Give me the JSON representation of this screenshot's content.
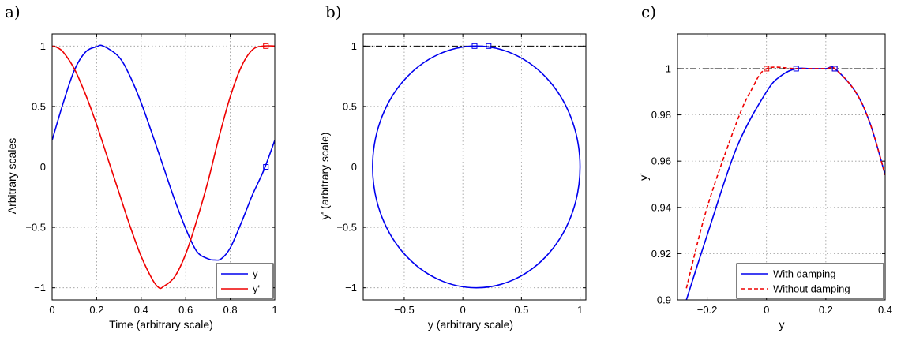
{
  "chart_data": [
    {
      "type": "line",
      "panel_label": "a)",
      "xlabel": "Time (arbitrary scale)",
      "ylabel": "Arbitrary scales",
      "xlim": [
        0,
        1
      ],
      "ylim": [
        -1.1,
        1.1
      ],
      "xticks": [
        0,
        0.2,
        0.4,
        0.6,
        0.8,
        1
      ],
      "xtick_labels": [
        "0",
        "0.2",
        "0.4",
        "0.6",
        "0.8",
        "1"
      ],
      "yticks": [
        -1,
        -0.5,
        0,
        0.5,
        1
      ],
      "ytick_labels": [
        "−1",
        "−0.5",
        "0",
        "0.5",
        "1"
      ],
      "grid": true,
      "legend_position": "bottom-right",
      "series": [
        {
          "name": "y",
          "color": "#0000ee",
          "x": [
            0,
            0.05,
            0.1,
            0.15,
            0.2,
            0.23,
            0.3,
            0.35,
            0.4,
            0.45,
            0.5,
            0.55,
            0.6,
            0.65,
            0.7,
            0.73,
            0.76,
            0.8,
            0.85,
            0.9,
            0.95,
            1.0
          ],
          "y": [
            0.22,
            0.53,
            0.8,
            0.95,
            0.995,
            1.0,
            0.91,
            0.75,
            0.53,
            0.27,
            0.0,
            -0.27,
            -0.51,
            -0.7,
            -0.76,
            -0.77,
            -0.76,
            -0.67,
            -0.46,
            -0.23,
            -0.03,
            0.22
          ]
        },
        {
          "name": "y'",
          "color": "#ee0000",
          "x": [
            0,
            0.02,
            0.05,
            0.1,
            0.15,
            0.2,
            0.25,
            0.3,
            0.35,
            0.4,
            0.45,
            0.48,
            0.5,
            0.55,
            0.6,
            0.65,
            0.7,
            0.75,
            0.8,
            0.85,
            0.9,
            0.95,
            1.0
          ],
          "y": [
            1.0,
            0.99,
            0.95,
            0.81,
            0.6,
            0.35,
            0.07,
            -0.21,
            -0.49,
            -0.74,
            -0.93,
            -1.0,
            -0.99,
            -0.91,
            -0.72,
            -0.44,
            -0.12,
            0.25,
            0.58,
            0.83,
            0.97,
            1.0,
            1.0
          ]
        }
      ],
      "markers": [
        {
          "x": 0.96,
          "y": 1.0,
          "color": "#ee0000"
        },
        {
          "x": 0.96,
          "y": 0.0,
          "color": "#0000ee"
        }
      ]
    },
    {
      "type": "line",
      "panel_label": "b)",
      "xlabel": "y (arbitrary scale)",
      "ylabel": "y' (arbitrary scale)",
      "xlim": [
        -0.85,
        1.05
      ],
      "ylim": [
        -1.1,
        1.1
      ],
      "xticks": [
        -0.5,
        0,
        0.5,
        1
      ],
      "xtick_labels": [
        "−0.5",
        "0",
        "0.5",
        "1"
      ],
      "yticks": [
        -1,
        -0.5,
        0,
        0.5,
        1
      ],
      "ytick_labels": [
        "−1",
        "−0.5",
        "0",
        "0.5",
        "1"
      ],
      "grid": true,
      "hline": {
        "y": 1,
        "style": "dash-dot",
        "color": "#000000"
      },
      "ellipse": {
        "cx": 0.115,
        "cy": 0.0,
        "rx": 0.885,
        "ry": 1.0,
        "color": "#0000ee"
      },
      "markers": [
        {
          "x": 0.1,
          "y": 1.0,
          "color": "#0000ee"
        },
        {
          "x": 0.22,
          "y": 1.0,
          "color": "#0000ee"
        }
      ]
    },
    {
      "type": "line",
      "panel_label": "c)",
      "xlabel": "y",
      "ylabel": "y'",
      "xlim": [
        -0.3,
        0.4
      ],
      "ylim": [
        0.9,
        1.015
      ],
      "xticks": [
        -0.2,
        0,
        0.2,
        0.4
      ],
      "xtick_labels": [
        "−0.2",
        "0",
        "0.2",
        "0.4"
      ],
      "yticks": [
        0.9,
        0.92,
        0.94,
        0.96,
        0.98,
        1
      ],
      "ytick_labels": [
        "0.9",
        "0.92",
        "0.94",
        "0.96",
        "0.98",
        "1"
      ],
      "grid": true,
      "hline": {
        "y": 1,
        "style": "dash-dot",
        "color": "#000000"
      },
      "legend_position": "bottom-right",
      "series": [
        {
          "name": "With damping",
          "color": "#0000ee",
          "style": "solid",
          "x": [
            -0.27,
            -0.2,
            -0.1,
            0.0,
            0.05,
            0.1,
            0.15,
            0.2,
            0.23,
            0.3,
            0.35,
            0.4
          ],
          "y": [
            0.9,
            0.928,
            0.966,
            0.99,
            0.997,
            1.0,
            1.0,
            1.0,
            1.0,
            0.99,
            0.976,
            0.954
          ]
        },
        {
          "name": "Without damping",
          "color": "#ee0000",
          "style": "dashed",
          "x": [
            -0.27,
            -0.2,
            -0.1,
            -0.05,
            0.0,
            0.1,
            0.2,
            0.23,
            0.3,
            0.35,
            0.4
          ],
          "y": [
            0.905,
            0.94,
            0.977,
            0.991,
            1.0,
            1.0,
            1.0,
            1.0,
            0.99,
            0.976,
            0.954
          ]
        }
      ],
      "markers": [
        {
          "x": 0.0,
          "y": 1.0,
          "color": "#ee0000"
        },
        {
          "x": 0.1,
          "y": 1.0,
          "color": "#0000ee"
        },
        {
          "x": 0.23,
          "y": 1.0,
          "color": "#ee0000"
        },
        {
          "x": 0.23,
          "y": 1.0,
          "color": "#0000ee"
        }
      ]
    }
  ]
}
